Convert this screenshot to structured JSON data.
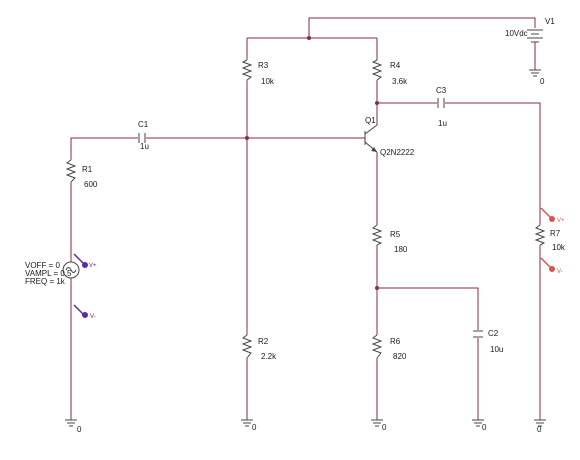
{
  "components": {
    "V1": {
      "ref": "V1",
      "value": "10Vdc",
      "gnd": "0"
    },
    "R3": {
      "ref": "R3",
      "value": "10k"
    },
    "R4": {
      "ref": "R4",
      "value": "3.6k"
    },
    "C3": {
      "ref": "C3",
      "value": "1u"
    },
    "C1": {
      "ref": "C1",
      "value": "1u"
    },
    "Q1": {
      "ref": "Q1",
      "value": "Q2N2222"
    },
    "R1": {
      "ref": "R1",
      "value": "600"
    },
    "R5": {
      "ref": "R5",
      "value": "180"
    },
    "R7": {
      "ref": "R7",
      "value": "10k"
    },
    "R2": {
      "ref": "R2",
      "value": "2.2k"
    },
    "R6": {
      "ref": "R6",
      "value": "820"
    },
    "C2": {
      "ref": "C2",
      "value": "10u"
    },
    "VS": {
      "voff": "VOFF = 0",
      "vampl": "VAMPL = 0.5",
      "freq": "FREQ = 1k"
    }
  },
  "grounds": {
    "label": "0"
  },
  "probes": {
    "plus": "V+",
    "minus": "V-"
  },
  "colors": {
    "wire": "#8a2a47",
    "component": "#444444",
    "probe_input": "#5b2a9e",
    "probe_output": "#d9534f"
  }
}
